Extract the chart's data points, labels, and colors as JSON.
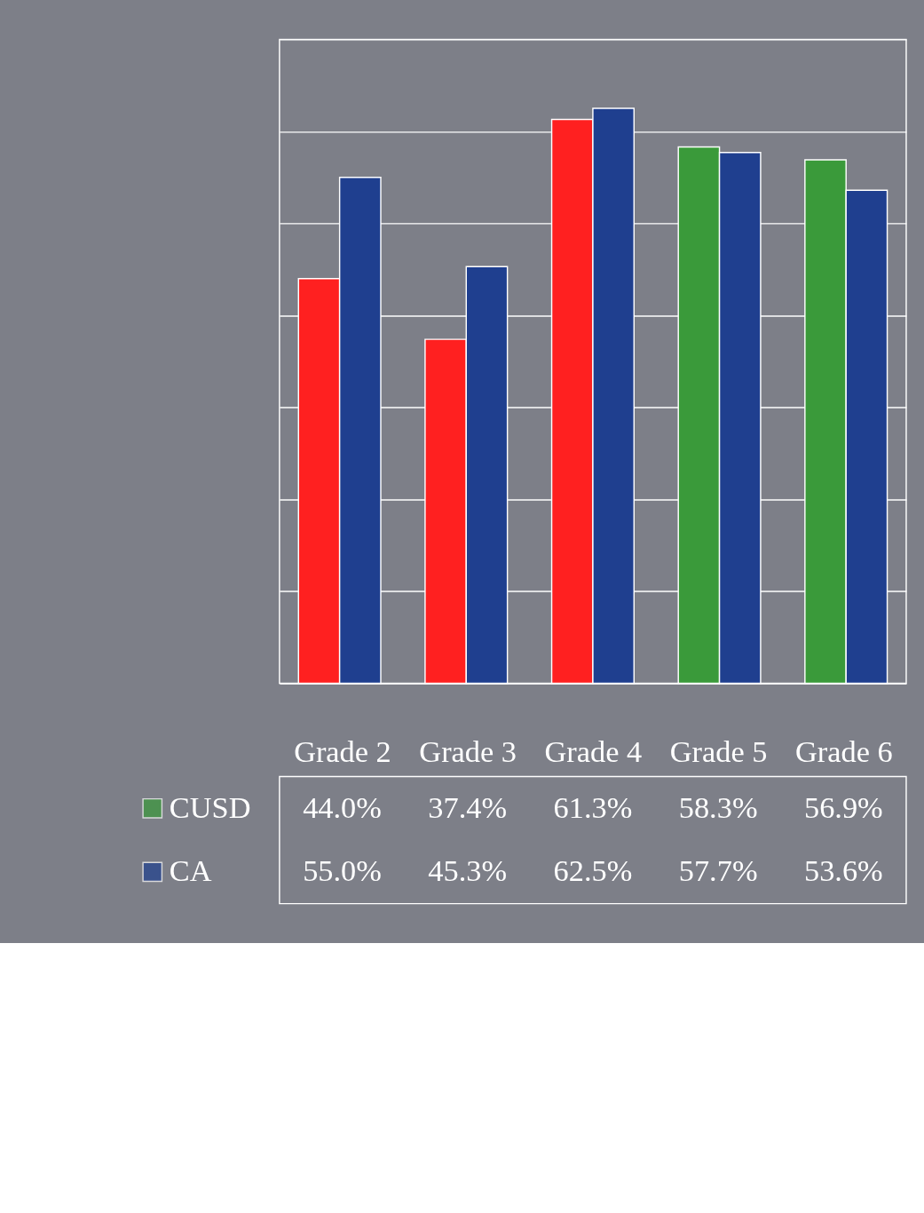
{
  "chart_data": {
    "type": "bar",
    "categories": [
      "Grade 2",
      "Grade 3",
      "Grade 4",
      "Grade 5",
      "Grade 6"
    ],
    "series": [
      {
        "name": "CUSD",
        "color": "#3a9a3a",
        "colors": [
          "#ff2020",
          "#ff2020",
          "#ff2020",
          "#3a9a3a",
          "#3a9a3a"
        ],
        "values": [
          44.0,
          37.4,
          61.3,
          58.3,
          56.9
        ],
        "value_labels": [
          "44.0%",
          "37.4%",
          "61.3%",
          "58.3%",
          "56.9%"
        ]
      },
      {
        "name": "CA",
        "color": "#1f3f8f",
        "values": [
          55.0,
          45.3,
          62.5,
          57.7,
          53.6
        ],
        "value_labels": [
          "55.0%",
          "45.3%",
          "62.5%",
          "57.7%",
          "53.6%"
        ]
      }
    ],
    "ylim": [
      0,
      70
    ],
    "yticks": [
      {
        "value": 0,
        "label": null
      },
      {
        "value": 10,
        "label": null
      },
      {
        "value": 20,
        "label": null
      },
      {
        "value": 30,
        "label": null
      },
      {
        "value": 40,
        "label": null
      },
      {
        "value": 50,
        "label": null
      },
      {
        "value": 60,
        "label": null
      },
      {
        "value": 70,
        "label": null
      }
    ],
    "grid": "y",
    "tick_labels": "x",
    "legend": "bottom left"
  }
}
